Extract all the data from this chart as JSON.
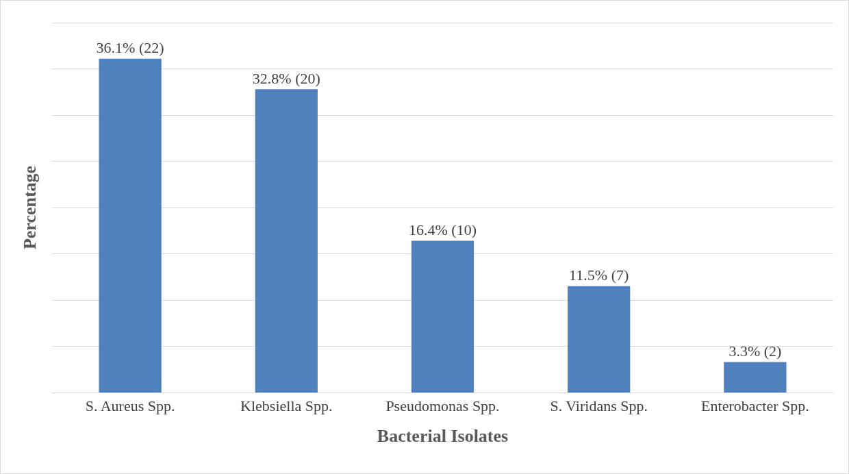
{
  "chart_data": {
    "type": "bar",
    "xlabel": "Bacterial Isolates",
    "ylabel": "Percentage",
    "categories": [
      "S. Aureus Spp.",
      "Klebsiella Spp.",
      "Pseudomonas Spp.",
      "S. Viridans Spp.",
      "Enterobacter Spp."
    ],
    "values": [
      36.1,
      32.8,
      16.4,
      11.5,
      3.3
    ],
    "value_labels": [
      "36.1% (22)",
      "32.8% (20)",
      "16.4% (10)",
      "11.5% (7)",
      "3.3% (2)"
    ],
    "color": "#4f81bd",
    "ylim": [
      0,
      40
    ],
    "yticks": [
      {
        "value": 0,
        "label": null
      },
      {
        "value": 5,
        "label": null
      },
      {
        "value": 10,
        "label": null
      },
      {
        "value": 15,
        "label": null
      },
      {
        "value": 20,
        "label": null
      },
      {
        "value": 25,
        "label": null
      },
      {
        "value": 30,
        "label": null
      },
      {
        "value": 35,
        "label": null
      },
      {
        "value": 40,
        "label": null
      }
    ],
    "grid": "y",
    "tick_labels": "x"
  }
}
